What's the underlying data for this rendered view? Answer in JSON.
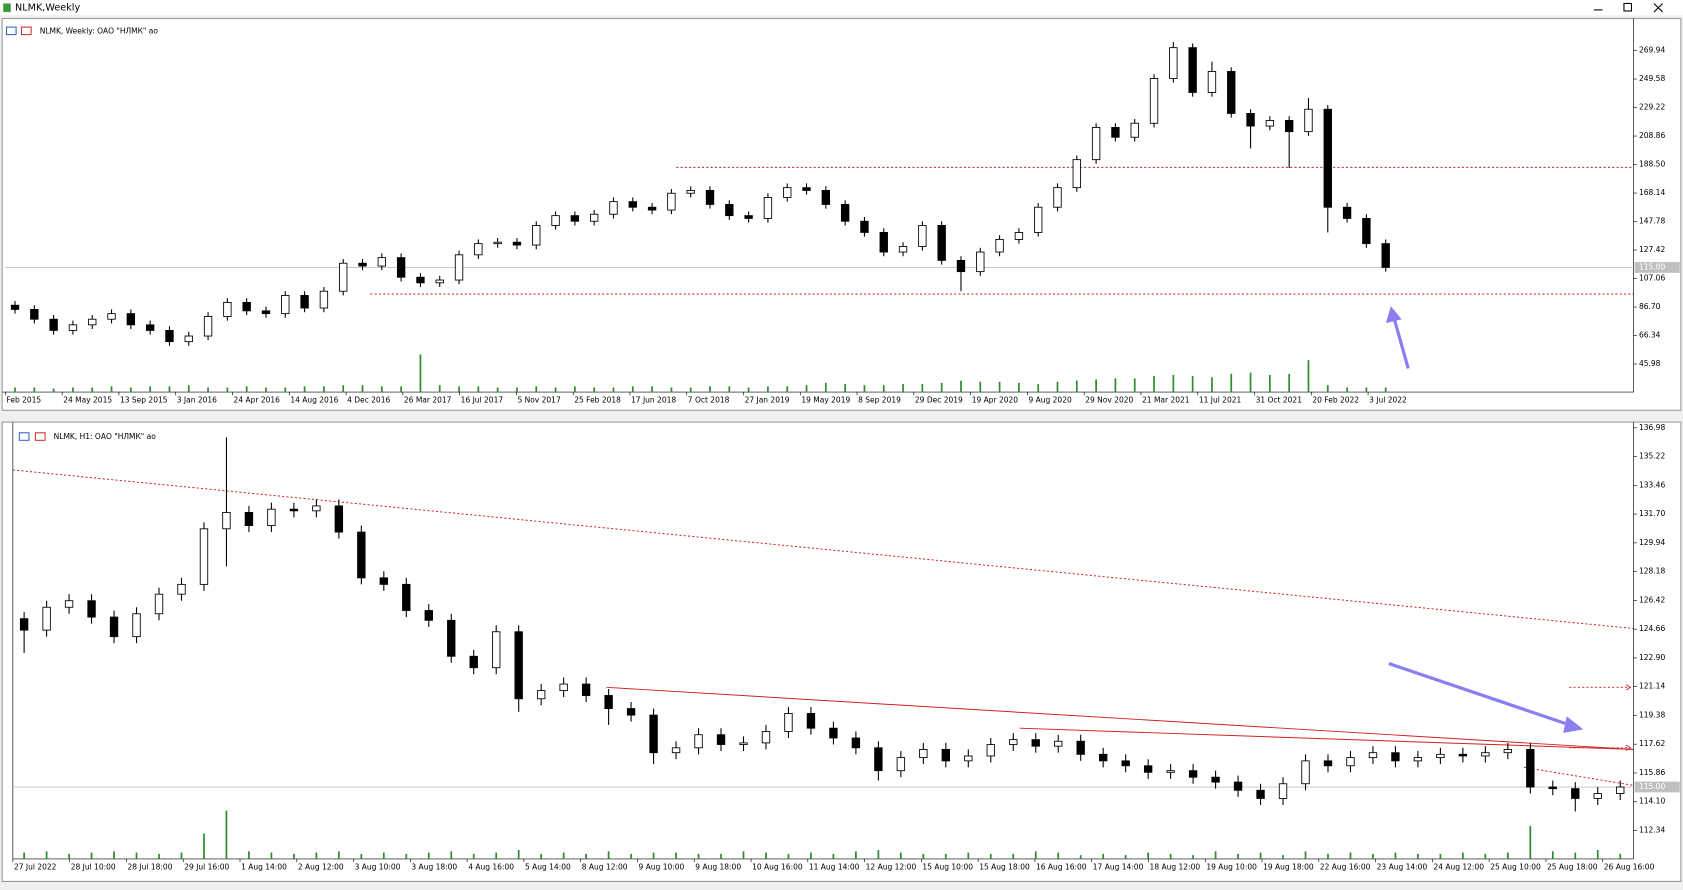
{
  "window": {
    "title": "NLMK,Weekly"
  },
  "chart_data": [
    {
      "type": "candlestick",
      "label": "NLMK, Weekly:  ОАО \"НЛМК\" ао",
      "ylim": [
        26,
        289
      ],
      "yticks": [
        269.94,
        249.58,
        229.22,
        208.86,
        {
          "value": 188.5,
          "label": "188.50"
        },
        168.14,
        147.78,
        127.42,
        107.06,
        {
          "value": 86.7,
          "label": "86.70"
        },
        66.34,
        45.98
      ],
      "current_price": {
        "value": 115,
        "label": "115.00"
      },
      "x_labels": [
        "Feb 2015",
        "24 May 2015",
        "13 Sep 2015",
        "3 Jan 2016",
        "24 Apr 2016",
        "14 Aug 2016",
        "4 Dec 2016",
        "26 Mar 2017",
        "16 Jul 2017",
        "5 Nov 2017",
        "25 Feb 2018",
        "17 Jun 2018",
        "7 Oct 2018",
        "27 Jan 2019",
        "19 May 2019",
        "8 Sep 2019",
        "29 Dec 2019",
        "19 Apr 2020",
        "9 Aug 2020",
        "29 Nov 2020",
        "21 Mar 2021",
        "11 Jul 2021",
        "31 Oct 2021",
        "20 Feb 2022",
        "3 Jul 2022"
      ],
      "open": [
        88,
        85,
        78,
        70,
        74,
        78,
        82,
        74,
        70,
        62,
        66,
        80,
        90,
        84,
        82,
        95,
        86,
        98,
        118,
        116,
        122,
        108,
        104,
        106,
        124,
        132,
        133,
        131,
        145,
        152,
        148,
        153,
        162,
        158,
        156,
        168,
        170,
        160,
        152,
        150,
        165,
        172,
        170,
        160,
        148,
        140,
        126,
        130,
        145,
        120,
        112,
        126,
        135,
        140,
        158,
        172,
        192,
        215,
        208,
        218,
        250,
        272,
        240,
        255,
        225,
        216,
        220,
        212,
        228,
        158,
        150,
        132
      ],
      "high": [
        91,
        88,
        81,
        77,
        81,
        85,
        85,
        77,
        73,
        69,
        83,
        93,
        93,
        87,
        98,
        98,
        101,
        121,
        121,
        125,
        125,
        111,
        109,
        127,
        135,
        136,
        136,
        148,
        155,
        155,
        156,
        165,
        165,
        161,
        171,
        173,
        173,
        163,
        155,
        168,
        175,
        175,
        173,
        163,
        151,
        143,
        133,
        148,
        148,
        123,
        129,
        138,
        143,
        161,
        175,
        195,
        218,
        218,
        221,
        253,
        276,
        275,
        262,
        258,
        228,
        223,
        223,
        236,
        231,
        161,
        153,
        135
      ],
      "low": [
        82,
        75,
        67,
        67,
        71,
        75,
        71,
        67,
        59,
        59,
        63,
        77,
        81,
        79,
        79,
        83,
        83,
        95,
        113,
        113,
        105,
        101,
        101,
        103,
        121,
        129,
        128,
        128,
        142,
        145,
        145,
        150,
        155,
        153,
        153,
        165,
        157,
        149,
        147,
        147,
        162,
        167,
        157,
        145,
        137,
        123,
        123,
        127,
        117,
        98,
        109,
        123,
        132,
        137,
        155,
        169,
        189,
        205,
        205,
        215,
        247,
        237,
        237,
        222,
        200,
        213,
        186,
        209,
        140,
        147,
        129,
        112
      ],
      "close": [
        85,
        78,
        70,
        74,
        78,
        82,
        74,
        70,
        62,
        66,
        80,
        90,
        84,
        82,
        95,
        86,
        98,
        118,
        116,
        122,
        108,
        104,
        106,
        124,
        132,
        133,
        131,
        145,
        152,
        148,
        153,
        162,
        158,
        156,
        168,
        170,
        160,
        152,
        150,
        165,
        172,
        170,
        160,
        148,
        140,
        126,
        130,
        145,
        120,
        112,
        126,
        135,
        140,
        158,
        172,
        192,
        215,
        208,
        218,
        250,
        272,
        240,
        255,
        225,
        216,
        220,
        212,
        228,
        158,
        150,
        132,
        115
      ],
      "volume": [
        4,
        4,
        3,
        4,
        4,
        5,
        4,
        5,
        5,
        6,
        4,
        4,
        5,
        4,
        4,
        5,
        5,
        6,
        6,
        5,
        5,
        33,
        6,
        5,
        5,
        4,
        4,
        5,
        4,
        5,
        4,
        4,
        5,
        5,
        4,
        4,
        5,
        5,
        4,
        5,
        5,
        6,
        8,
        7,
        6,
        6,
        7,
        7,
        8,
        10,
        9,
        9,
        8,
        7,
        9,
        10,
        11,
        12,
        12,
        14,
        15,
        14,
        13,
        16,
        17,
        15,
        16,
        28,
        6,
        4,
        4,
        4
      ],
      "levels": [
        186.5,
        96
      ]
    },
    {
      "type": "candlestick",
      "label": "NLMK, H1:  ОАО \"НЛМК\" ао",
      "ylim": [
        110.6,
        137.2
      ],
      "yticks": [
        136.98,
        135.22,
        133.46,
        {
          "value": 131.7,
          "label": "131.70"
        },
        129.94,
        128.18,
        126.42,
        124.66,
        {
          "value": 122.9,
          "label": "122.90"
        },
        121.14,
        119.38,
        117.62,
        115.86,
        {
          "value": 114.1,
          "label": "114.10"
        },
        112.34
      ],
      "current_price": {
        "value": 115,
        "label": "115.00"
      },
      "x_labels": [
        "27 Jul 2022",
        "28 Jul 10:00",
        "28 Jul 18:00",
        "29 Jul 16:00",
        "1 Aug 14:00",
        "2 Aug 12:00",
        "3 Aug 10:00",
        "3 Aug 18:00",
        "4 Aug 16:00",
        "5 Aug 14:00",
        "8 Aug 12:00",
        "9 Aug 10:00",
        "9 Aug 18:00",
        "10 Aug 16:00",
        "11 Aug 14:00",
        "12 Aug 12:00",
        "15 Aug 10:00",
        "15 Aug 18:00",
        "16 Aug 16:00",
        "17 Aug 14:00",
        "18 Aug 12:00",
        "19 Aug 10:00",
        "19 Aug 18:00",
        "22 Aug 16:00",
        "23 Aug 14:00",
        "24 Aug 12:00",
        "25 Aug 10:00",
        "25 Aug 18:00",
        "26 Aug 16:00"
      ],
      "open": [
        125.3,
        124.6,
        126,
        126.4,
        125.4,
        124.2,
        125.6,
        126.8,
        127.4,
        130.8,
        131.8,
        131,
        132,
        131.9,
        132.2,
        130.6,
        127.8,
        127.4,
        125.8,
        125.2,
        123,
        122.3,
        124.5,
        120.4,
        120.9,
        121.3,
        120.6,
        119.8,
        119.4,
        117.1,
        117.4,
        118.2,
        117.6,
        117.7,
        118.4,
        119.5,
        118.6,
        118,
        117.4,
        116,
        116.8,
        117.3,
        116.6,
        116.9,
        117.6,
        117.9,
        117.5,
        117.8,
        117,
        116.6,
        116.3,
        115.9,
        116,
        115.6,
        115.3,
        114.8,
        114.3,
        115.2,
        116.6,
        116.3,
        116.8,
        117.1,
        116.6,
        116.8,
        117,
        116.9,
        117.1,
        117.3,
        115,
        114.9,
        114.3,
        114.6
      ],
      "high": [
        125.7,
        126.4,
        126.8,
        126.8,
        125.8,
        126,
        127.2,
        127.8,
        131.2,
        136.4,
        132.2,
        132.4,
        132.4,
        132.6,
        132.6,
        131,
        128.2,
        127.8,
        126.2,
        125.6,
        123.4,
        124.9,
        124.9,
        121.3,
        121.7,
        121.7,
        121,
        120.2,
        119.8,
        117.8,
        118.6,
        118.6,
        118.1,
        118.8,
        119.9,
        119.9,
        119,
        118.4,
        117.8,
        117.2,
        117.7,
        117.7,
        117.3,
        118,
        118.3,
        118.3,
        118.2,
        118.2,
        117.4,
        117,
        116.7,
        116.4,
        116.4,
        116,
        115.7,
        115.2,
        115.6,
        117,
        117,
        117.2,
        117.5,
        117.5,
        117.2,
        117.4,
        117.4,
        117.5,
        117.7,
        117.7,
        115.4,
        115.3,
        115,
        115.4
      ],
      "low": [
        123.2,
        124.2,
        125.6,
        125,
        123.8,
        123.8,
        125.2,
        126.4,
        127,
        128.5,
        130.6,
        130.6,
        131.5,
        131.5,
        130.2,
        127.4,
        127,
        125.4,
        124.8,
        122.6,
        121.9,
        121.9,
        119.6,
        120,
        120.5,
        120.2,
        118.8,
        119,
        116.4,
        116.7,
        117,
        117.2,
        117.2,
        117.3,
        118,
        118.2,
        117.6,
        117,
        115.4,
        115.6,
        116.4,
        116.2,
        116.2,
        116.5,
        117.2,
        117.1,
        117.1,
        116.6,
        116.2,
        115.9,
        115.5,
        115.5,
        115.2,
        114.9,
        114.4,
        113.9,
        113.9,
        114.8,
        115.9,
        115.9,
        116.4,
        116.2,
        116.2,
        116.4,
        116.5,
        116.5,
        116.7,
        114.6,
        114.5,
        113.5,
        113.9,
        114.2
      ],
      "close": [
        124.6,
        126,
        126.4,
        125.4,
        124.2,
        125.6,
        126.8,
        127.4,
        130.8,
        131.8,
        131,
        132,
        131.9,
        132.2,
        130.6,
        127.8,
        127.4,
        125.8,
        125.2,
        123,
        122.3,
        124.5,
        120.4,
        120.9,
        121.3,
        120.6,
        119.8,
        119.4,
        117.1,
        117.4,
        118.2,
        117.6,
        117.7,
        118.4,
        119.5,
        118.6,
        118,
        117.4,
        116,
        116.8,
        117.3,
        116.6,
        116.9,
        117.6,
        117.9,
        117.5,
        117.8,
        117,
        116.6,
        116.3,
        115.9,
        116,
        115.6,
        115.3,
        114.8,
        114.3,
        115.2,
        116.6,
        116.3,
        116.8,
        117.1,
        116.6,
        116.8,
        117,
        116.9,
        117.1,
        117.3,
        115,
        114.9,
        114.3,
        114.6,
        115
      ],
      "volume": [
        5,
        6,
        4,
        5,
        6,
        5,
        4,
        5,
        20,
        38,
        6,
        5,
        4,
        5,
        6,
        4,
        5,
        4,
        5,
        6,
        4,
        5,
        7,
        4,
        5,
        4,
        6,
        4,
        5,
        5,
        4,
        4,
        6,
        5,
        4,
        5,
        4,
        6,
        7,
        5,
        4,
        4,
        5,
        4,
        4,
        6,
        5,
        3,
        4,
        3,
        5,
        4,
        3,
        6,
        4,
        5,
        3,
        6,
        4,
        5,
        4,
        5,
        4,
        4,
        5,
        4,
        5,
        26,
        6,
        5,
        7,
        4
      ],
      "trendlines": [
        {
          "start": 134.4,
          "end": 124.7,
          "style": "dashed"
        },
        {
          "start": 121.1,
          "end": 117.3,
          "style": "solid"
        },
        {
          "start": 118.6,
          "end": 117.3,
          "style": "solid"
        },
        {
          "start": 116.2,
          "end": 115.1,
          "style": "dashed"
        }
      ],
      "price_arrows": [
        121.1,
        117.4
      ]
    }
  ]
}
